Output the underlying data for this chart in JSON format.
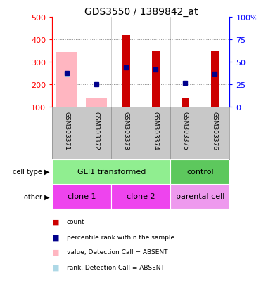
{
  "title": "GDS3550 / 1389842_at",
  "samples": [
    "GSM303371",
    "GSM303372",
    "GSM303373",
    "GSM303374",
    "GSM303375",
    "GSM303376"
  ],
  "count_values": [
    null,
    null,
    420,
    350,
    140,
    350
  ],
  "count_base": 100,
  "pink_bar_values": [
    345,
    140,
    null,
    null,
    null,
    null
  ],
  "pink_bar_base": 100,
  "blue_square_values": [
    250,
    200,
    275,
    265,
    205,
    248
  ],
  "light_blue_square_value": 248,
  "light_blue_square_index": 0,
  "ylim_left": [
    100,
    500
  ],
  "ylim_right": [
    0,
    100
  ],
  "left_ticks": [
    100,
    200,
    300,
    400,
    500
  ],
  "right_ticks": [
    0,
    25,
    50,
    75,
    100
  ],
  "right_tick_labels": [
    "0",
    "25",
    "50",
    "75",
    "100%"
  ],
  "cell_type_groups": [
    {
      "label": "GLI1 transformed",
      "start": 0,
      "end": 4,
      "color": "#90EE90"
    },
    {
      "label": "control",
      "start": 4,
      "end": 6,
      "color": "#5DC85D"
    }
  ],
  "other_groups": [
    {
      "label": "clone 1",
      "start": 0,
      "end": 2,
      "color": "#EE44EE"
    },
    {
      "label": "clone 2",
      "start": 2,
      "end": 4,
      "color": "#EE44EE"
    },
    {
      "label": "parental cell",
      "start": 4,
      "end": 6,
      "color": "#EE99EE"
    }
  ],
  "legend_items": [
    {
      "color": "#CC0000",
      "label": "count",
      "marker": "s"
    },
    {
      "color": "#00008B",
      "label": "percentile rank within the sample",
      "marker": "s"
    },
    {
      "color": "#FFB6C1",
      "label": "value, Detection Call = ABSENT",
      "marker": "s"
    },
    {
      "color": "#ADD8E6",
      "label": "rank, Detection Call = ABSENT",
      "marker": "s"
    }
  ],
  "red_color": "#CC0000",
  "pink_color": "#FFB6C1",
  "blue_color": "#00008B",
  "light_blue_color": "#ADD8E6",
  "grid_color": "#808080",
  "bg_color": "#FFFFFF",
  "sample_bg_color": "#C8C8C8",
  "pink_bar_width": 0.72,
  "red_bar_width": 0.25
}
